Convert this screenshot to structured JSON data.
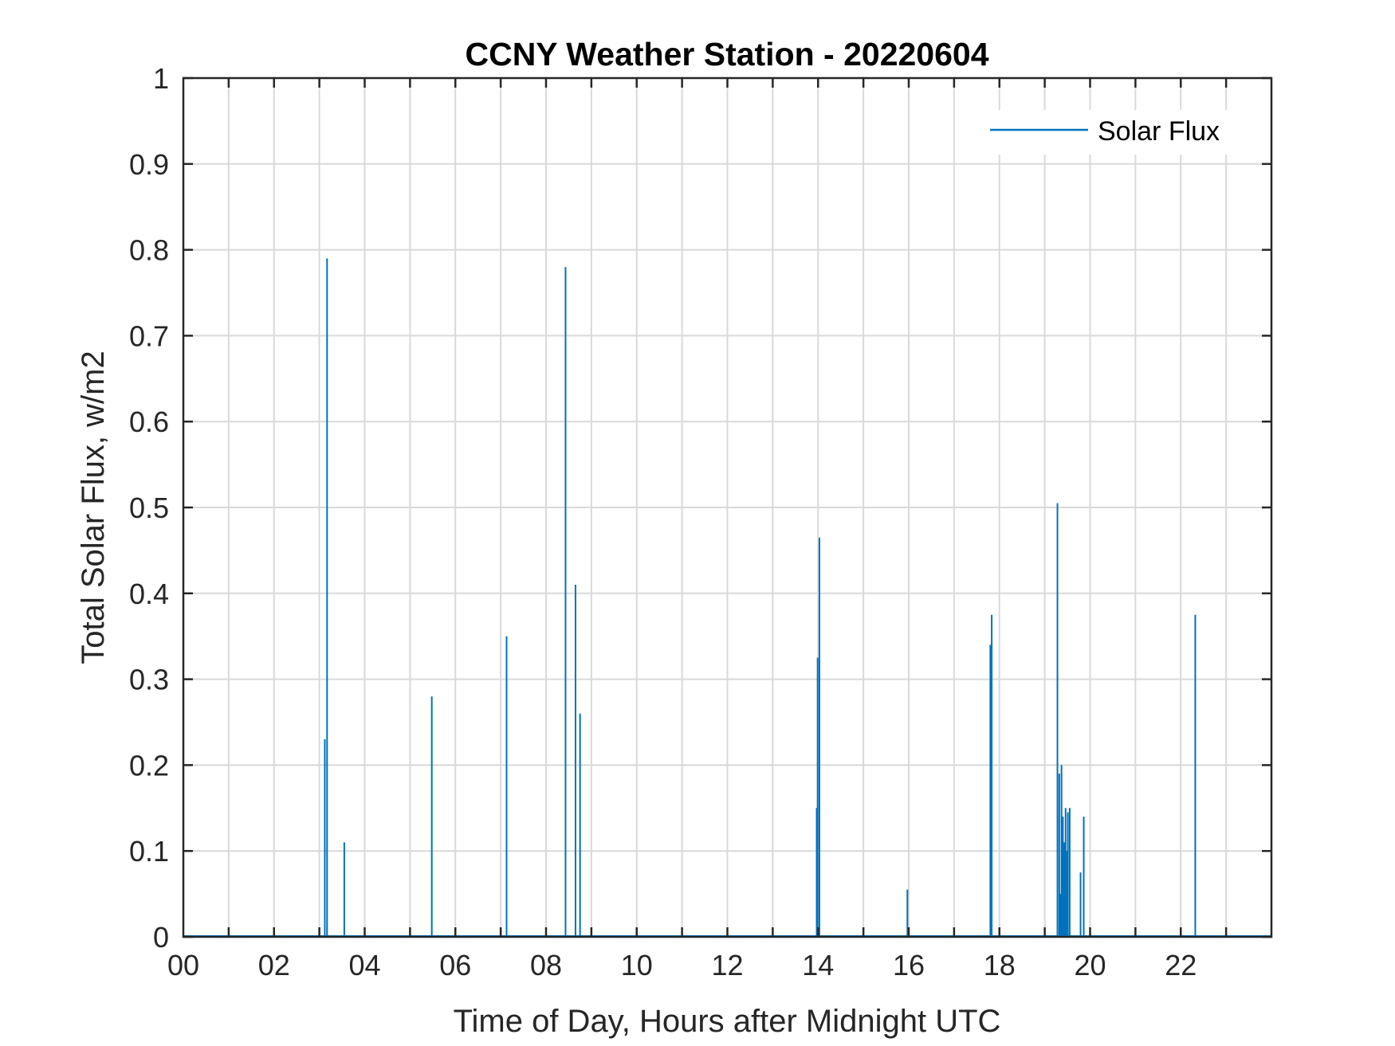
{
  "chart_data": {
    "type": "line",
    "title": "CCNY Weather Station - 20220604",
    "xlabel": "Time of Day, Hours after Midnight UTC",
    "ylabel": "Total Solar Flux, w/m2",
    "xlim": [
      0,
      24
    ],
    "ylim": [
      0,
      1
    ],
    "xticks": [
      0,
      2,
      4,
      6,
      8,
      10,
      12,
      14,
      16,
      18,
      20,
      22
    ],
    "xtick_labels": [
      "00",
      "02",
      "04",
      "06",
      "08",
      "10",
      "12",
      "14",
      "16",
      "18",
      "20",
      "22"
    ],
    "xgrid_step": 1,
    "yticks": [
      0,
      0.1,
      0.2,
      0.3,
      0.4,
      0.5,
      0.6,
      0.7,
      0.8,
      0.9,
      1
    ],
    "ytick_labels": [
      "0",
      "0.1",
      "0.2",
      "0.3",
      "0.4",
      "0.5",
      "0.6",
      "0.7",
      "0.8",
      "0.9",
      "1"
    ],
    "grid": true,
    "legend_position": "top-right",
    "color": "#0072BD",
    "series": [
      {
        "name": "Solar Flux",
        "spikes": [
          [
            3.12,
            0.23
          ],
          [
            3.17,
            0.79
          ],
          [
            3.55,
            0.11
          ],
          [
            5.48,
            0.28
          ],
          [
            7.13,
            0.35
          ],
          [
            8.43,
            0.78
          ],
          [
            8.65,
            0.41
          ],
          [
            8.75,
            0.26
          ],
          [
            13.97,
            0.15
          ],
          [
            13.99,
            0.325
          ],
          [
            14.03,
            0.465
          ],
          [
            15.97,
            0.055
          ],
          [
            17.8,
            0.34
          ],
          [
            17.83,
            0.375
          ],
          [
            19.28,
            0.505
          ],
          [
            19.32,
            0.19
          ],
          [
            19.35,
            0.05
          ],
          [
            19.37,
            0.2
          ],
          [
            19.4,
            0.14
          ],
          [
            19.43,
            0.11
          ],
          [
            19.46,
            0.15
          ],
          [
            19.48,
            0.1
          ],
          [
            19.51,
            0.145
          ],
          [
            19.55,
            0.15
          ],
          [
            19.79,
            0.075
          ],
          [
            19.86,
            0.14
          ],
          [
            22.32,
            0.375
          ]
        ]
      }
    ]
  }
}
